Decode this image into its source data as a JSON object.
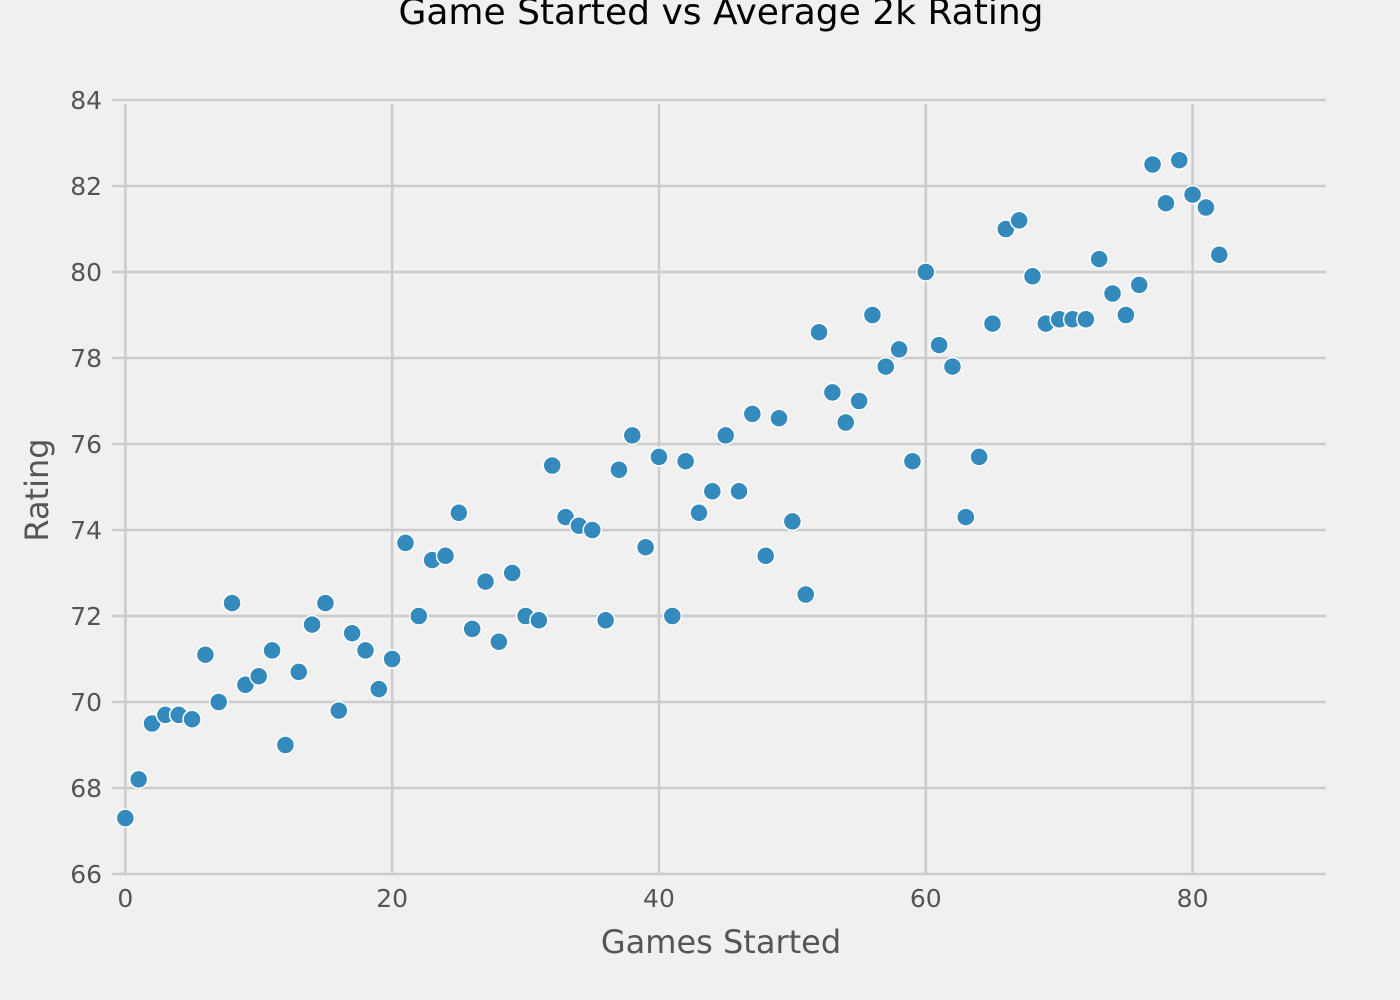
{
  "chart_data": {
    "type": "scatter",
    "title": "Game Started vs Average 2k Rating",
    "xlabel": "Games Started",
    "ylabel": "Rating",
    "xlim": [
      -1,
      90
    ],
    "ylim": [
      66,
      84
    ],
    "xticks": [
      0,
      20,
      40,
      60,
      80
    ],
    "yticks": [
      66,
      68,
      70,
      72,
      74,
      76,
      78,
      80,
      82,
      84
    ],
    "grid": true,
    "legend": "none",
    "marker_color": "#348abd",
    "background_color": "#f0f0f0",
    "grid_color": "#cbcbcb",
    "series": [
      {
        "x": [
          0,
          1,
          2,
          3,
          4,
          5,
          6,
          7,
          8,
          9,
          10,
          11,
          12,
          13,
          14,
          15,
          16,
          17,
          18,
          19,
          20,
          21,
          22,
          23,
          24,
          25,
          26,
          27,
          28,
          29,
          30,
          31,
          32,
          33,
          34,
          35,
          36,
          37,
          38,
          39,
          40,
          41,
          42,
          43,
          44,
          45,
          46,
          47,
          48,
          49,
          50,
          51,
          52,
          53,
          54,
          55,
          56,
          57,
          58,
          59,
          60,
          61,
          62,
          63,
          64,
          65,
          66,
          67,
          68,
          69,
          70,
          71,
          72,
          73,
          74,
          75,
          76,
          77,
          78,
          79,
          80,
          81,
          82
        ],
        "y": [
          67.3,
          68.2,
          69.5,
          69.7,
          69.7,
          69.6,
          71.1,
          70.0,
          72.3,
          70.4,
          70.6,
          71.2,
          69.0,
          70.7,
          71.8,
          72.3,
          69.8,
          71.6,
          71.2,
          70.3,
          71.0,
          73.7,
          72.0,
          73.3,
          73.4,
          74.4,
          71.7,
          72.8,
          71.4,
          73.0,
          72.0,
          71.9,
          75.5,
          74.3,
          74.1,
          74.0,
          71.9,
          75.4,
          76.2,
          73.6,
          75.7,
          72.0,
          75.6,
          74.4,
          74.9,
          76.2,
          74.9,
          76.7,
          73.4,
          76.6,
          74.2,
          72.5,
          78.6,
          77.2,
          76.5,
          77.0,
          79.0,
          77.8,
          78.2,
          75.6,
          80.0,
          78.3,
          77.8,
          74.3,
          75.7,
          78.8,
          81.0,
          81.2,
          79.9,
          78.8,
          78.9,
          78.9,
          78.9,
          80.3,
          79.5,
          79.0,
          79.7,
          82.5,
          81.6,
          82.6,
          81.8,
          81.5,
          80.4
        ]
      }
    ]
  }
}
